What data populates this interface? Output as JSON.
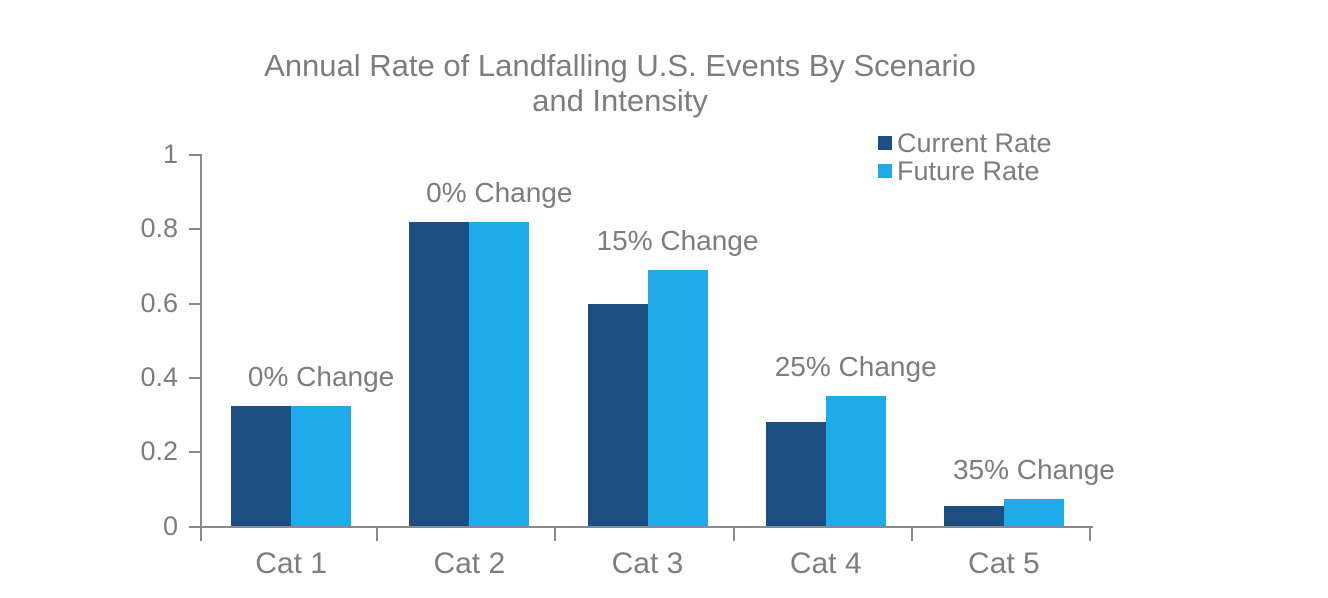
{
  "title": {
    "line1": "Annual Rate of Landfalling U.S. Events By Scenario",
    "line2": "and Intensity"
  },
  "legend": {
    "items": [
      {
        "label": "Current Rate",
        "swatch": "legend-swatch-current"
      },
      {
        "label": "Future Rate",
        "swatch": "legend-swatch-future"
      }
    ]
  },
  "colors": {
    "current_rate": "#1C4E82",
    "future_rate": "#1FABEA",
    "text_gray": "#7D7D7D",
    "axis_gray": "#8A8A8A"
  },
  "chart_data": {
    "type": "bar",
    "title": "Annual Rate of Landfalling U.S. Events By Scenario and Intensity",
    "categories": [
      "Cat 1",
      "Cat 2",
      "Cat 3",
      "Cat 4",
      "Cat 5"
    ],
    "series": [
      {
        "name": "Current Rate",
        "color": "#1C4E82",
        "values": [
          0.325,
          0.82,
          0.6,
          0.28,
          0.055
        ]
      },
      {
        "name": "Future Rate",
        "color": "#1FABEA",
        "values": [
          0.325,
          0.82,
          0.69,
          0.35,
          0.074
        ]
      }
    ],
    "annotations": [
      "0% Change",
      "0% Change",
      "15% Change",
      "25% Change",
      "35% Change"
    ],
    "xlabel": "",
    "ylabel": "",
    "yticks": [
      "0",
      "0.2",
      "0.4",
      "0.6",
      "0.8",
      "1"
    ],
    "ytick_values": [
      0,
      0.2,
      0.4,
      0.6,
      0.8,
      1
    ],
    "ylim": [
      0,
      1
    ],
    "grid": false,
    "legend_position": "top-right",
    "bar_label_gap_note": "percent-change labels sit above the Future Rate bar of each category"
  }
}
